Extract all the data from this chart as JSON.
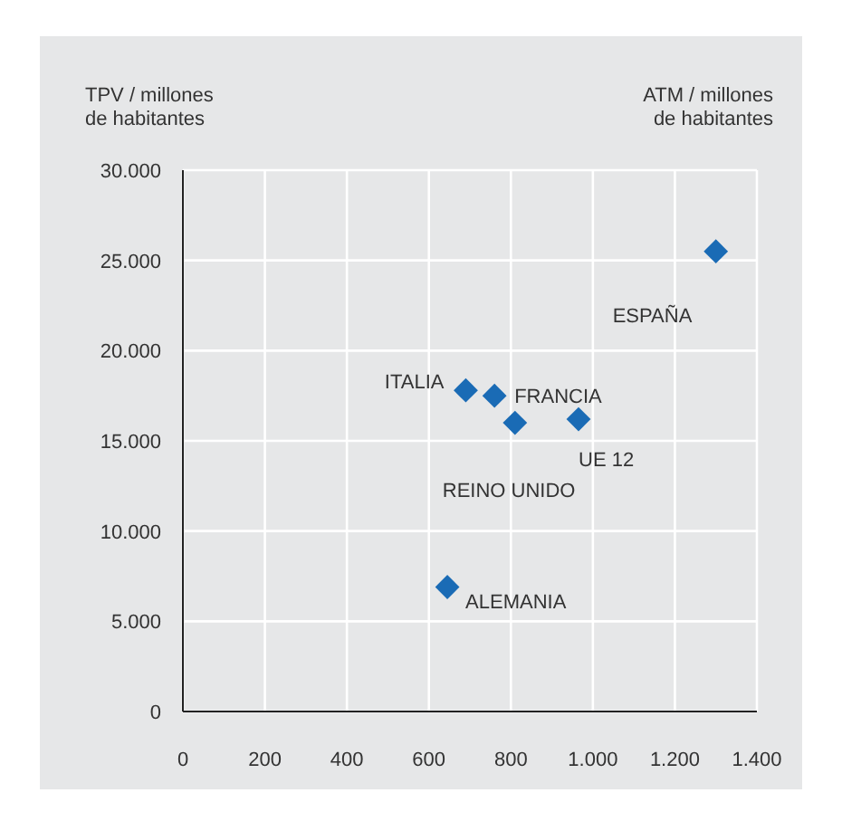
{
  "chart_data": {
    "type": "scatter",
    "xlabel": "ATM / millones de habitantes",
    "ylabel": "TPV / millones de habitantes",
    "series": [
      {
        "color": "#1a6bb5",
        "x": [
          1300,
          690,
          760,
          810,
          965,
          645
        ],
        "values": [
          25500,
          17800,
          17500,
          16000,
          16200,
          6900
        ]
      }
    ],
    "annotations": [
      {
        "text": "ESPAÑA",
        "x": 1300,
        "y": 25500
      },
      {
        "text": "ITALIA",
        "x": 690,
        "y": 17800
      },
      {
        "text": "FRANCIA",
        "x": 760,
        "y": 17500
      },
      {
        "text": "REINO UNIDO",
        "x": 810,
        "y": 16000
      },
      {
        "text": "UE 12",
        "x": 965,
        "y": 16200
      },
      {
        "text": "ALEMANIA",
        "x": 645,
        "y": 6900
      }
    ],
    "xlim": [
      0,
      1400
    ],
    "xticks": [
      0,
      200,
      400,
      600,
      800,
      {
        "value": 1000,
        "label": "1.000"
      },
      {
        "value": 1200,
        "label": "1.200"
      },
      {
        "value": 1400,
        "label": "1.400"
      }
    ],
    "ylim": [
      0,
      30000
    ],
    "yticks": [
      0,
      {
        "value": 5000,
        "label": "5.000"
      },
      {
        "value": 10000,
        "label": "10.000"
      },
      {
        "value": 15000,
        "label": "15.000"
      },
      {
        "value": 20000,
        "label": "20.000"
      },
      {
        "value": 25000,
        "label": "25.000"
      },
      {
        "value": 30000,
        "label": "30.000"
      }
    ],
    "grid": true,
    "marker": "diamond"
  }
}
